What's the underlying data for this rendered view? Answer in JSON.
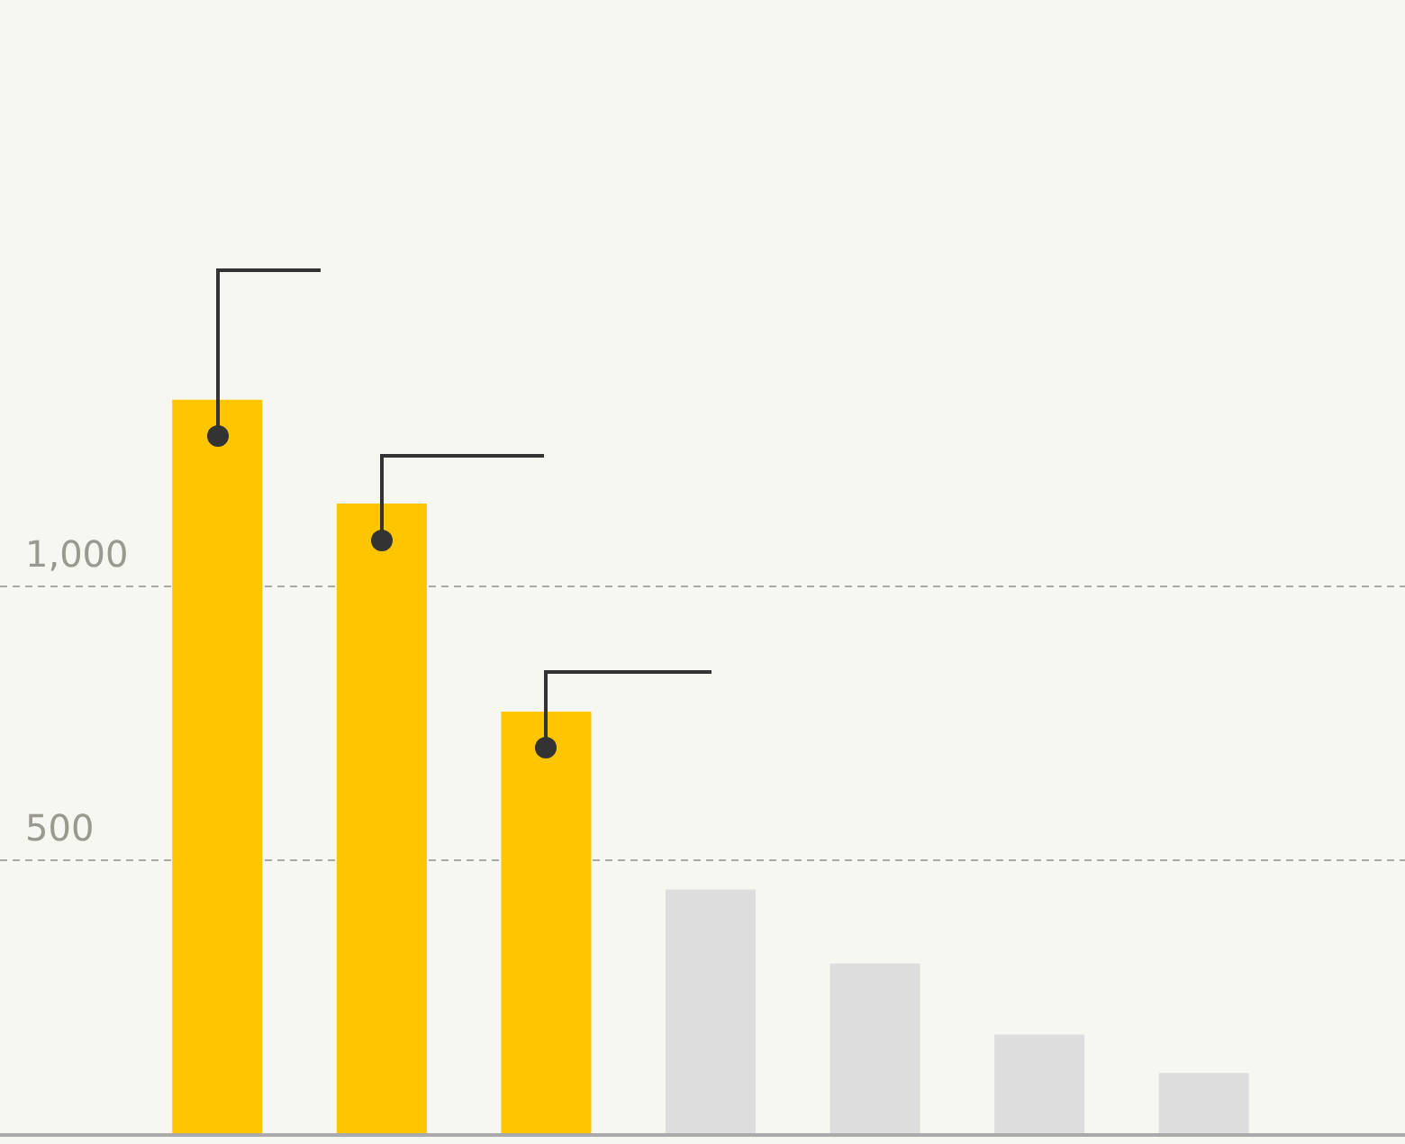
{
  "chart_data": {
    "type": "bar",
    "categories": [
      null,
      null,
      null,
      null,
      null,
      null,
      null
    ],
    "values": [
      1340,
      1150,
      770,
      445,
      310,
      180,
      110
    ],
    "colors": [
      "#ffc600",
      "#ffc600",
      "#ffc600",
      "#dddddd",
      "#dddddd",
      "#dddddd",
      "#dddddd"
    ],
    "ylim": [
      0,
      2070
    ],
    "yticks": [
      500,
      {
        "value": 1000,
        "label": "1,000"
      }
    ],
    "grid": "y",
    "legend": false
  }
}
